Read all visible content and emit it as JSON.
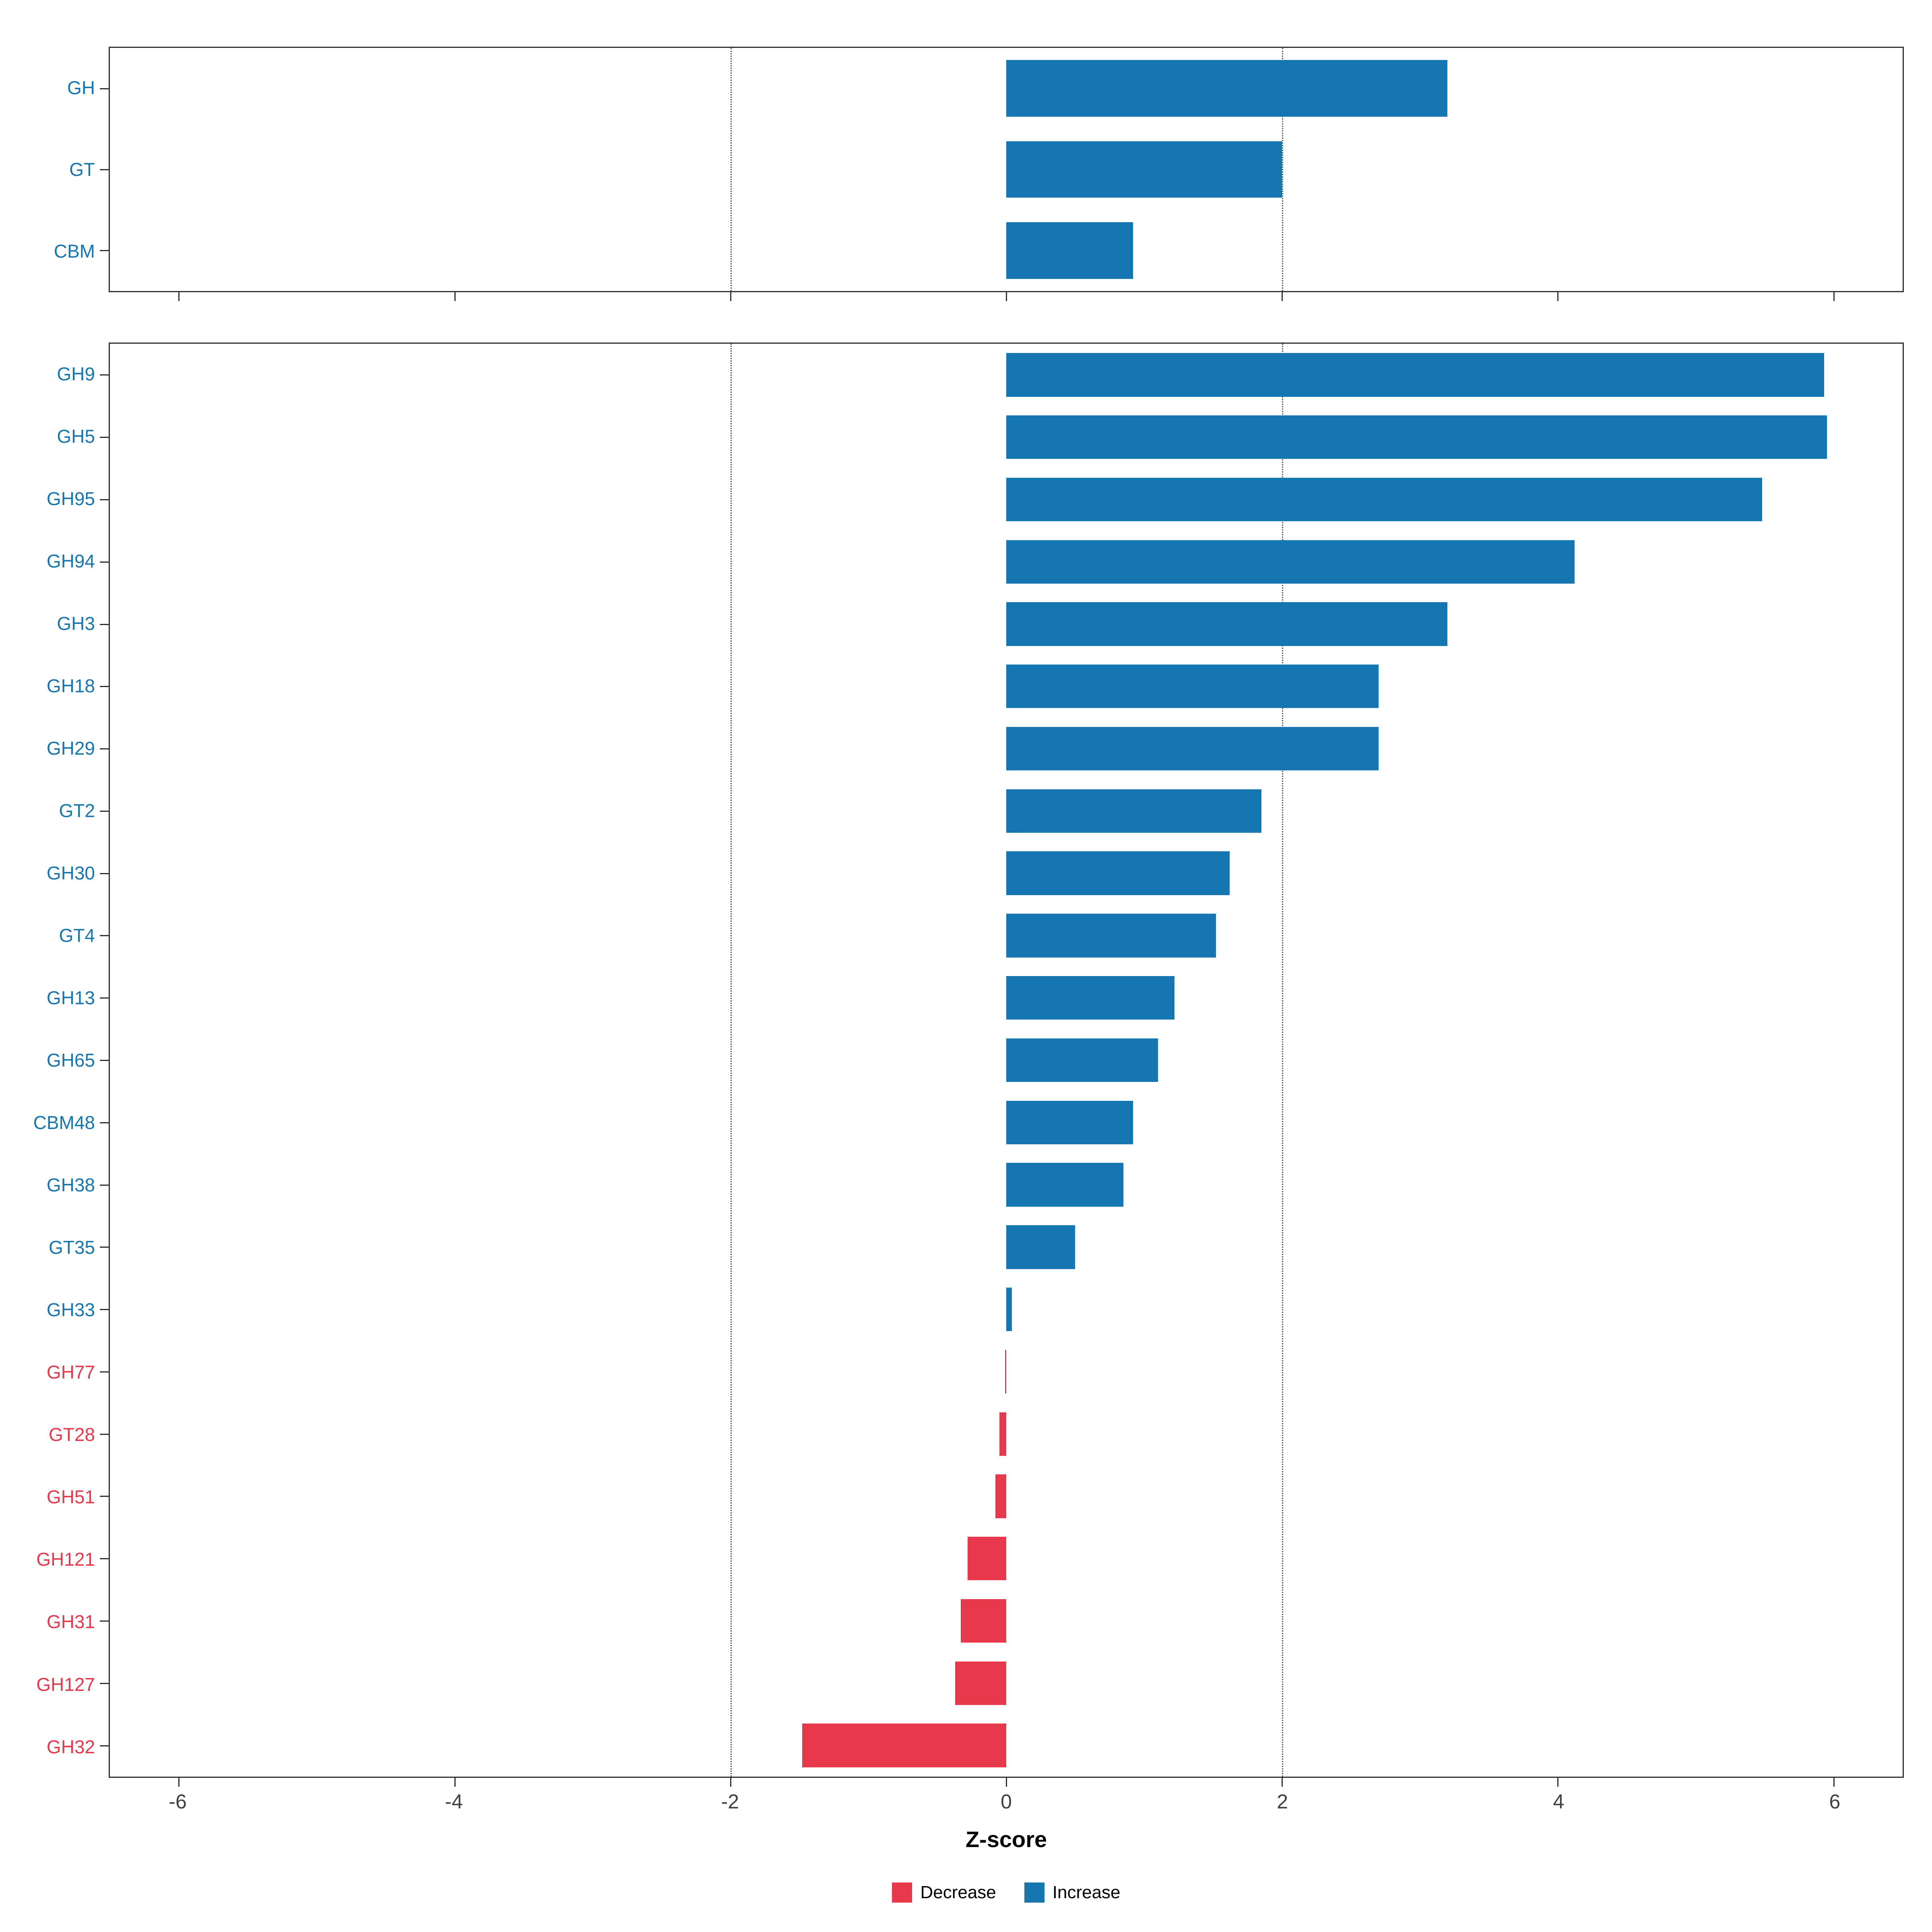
{
  "chart_data": {
    "type": "bar",
    "orientation": "horizontal",
    "title": "",
    "xlabel": "Z-score",
    "ylabel": "",
    "xlim": [
      -6.5,
      6.5
    ],
    "xticks": [
      -6,
      -4,
      -2,
      0,
      2,
      4,
      6
    ],
    "reference_lines": [
      -2,
      2
    ],
    "grid": "dotted vertical reference lines at -2 and 2",
    "legend_position": "bottom-center",
    "colors": {
      "increase": "#1576B2",
      "decrease": "#E8394C",
      "axis": "#333333",
      "tick_text": "#404040"
    },
    "legend": [
      {
        "label": "Decrease",
        "color_key": "decrease"
      },
      {
        "label": "Increase",
        "color_key": "increase"
      }
    ],
    "panels": [
      {
        "name": "cazyme-class-panel",
        "categories": [
          "GH",
          "GT",
          "CBM"
        ],
        "values": [
          3.2,
          2.0,
          0.92
        ]
      },
      {
        "name": "cazyme-family-panel",
        "categories": [
          "GH9",
          "GH5",
          "GH95",
          "GH94",
          "GH3",
          "GH18",
          "GH29",
          "GT2",
          "GH30",
          "GT4",
          "GH13",
          "GH65",
          "CBM48",
          "GH38",
          "GT35",
          "GH33",
          "GH77",
          "GT28",
          "GH51",
          "GH121",
          "GH31",
          "GH127",
          "GH32"
        ],
        "values": [
          5.93,
          5.95,
          5.48,
          4.12,
          3.2,
          2.7,
          2.7,
          1.85,
          1.62,
          1.52,
          1.22,
          1.1,
          0.92,
          0.85,
          0.5,
          0.04,
          -0.01,
          -0.05,
          -0.08,
          -0.28,
          -0.33,
          -0.37,
          -1.48
        ]
      }
    ]
  }
}
